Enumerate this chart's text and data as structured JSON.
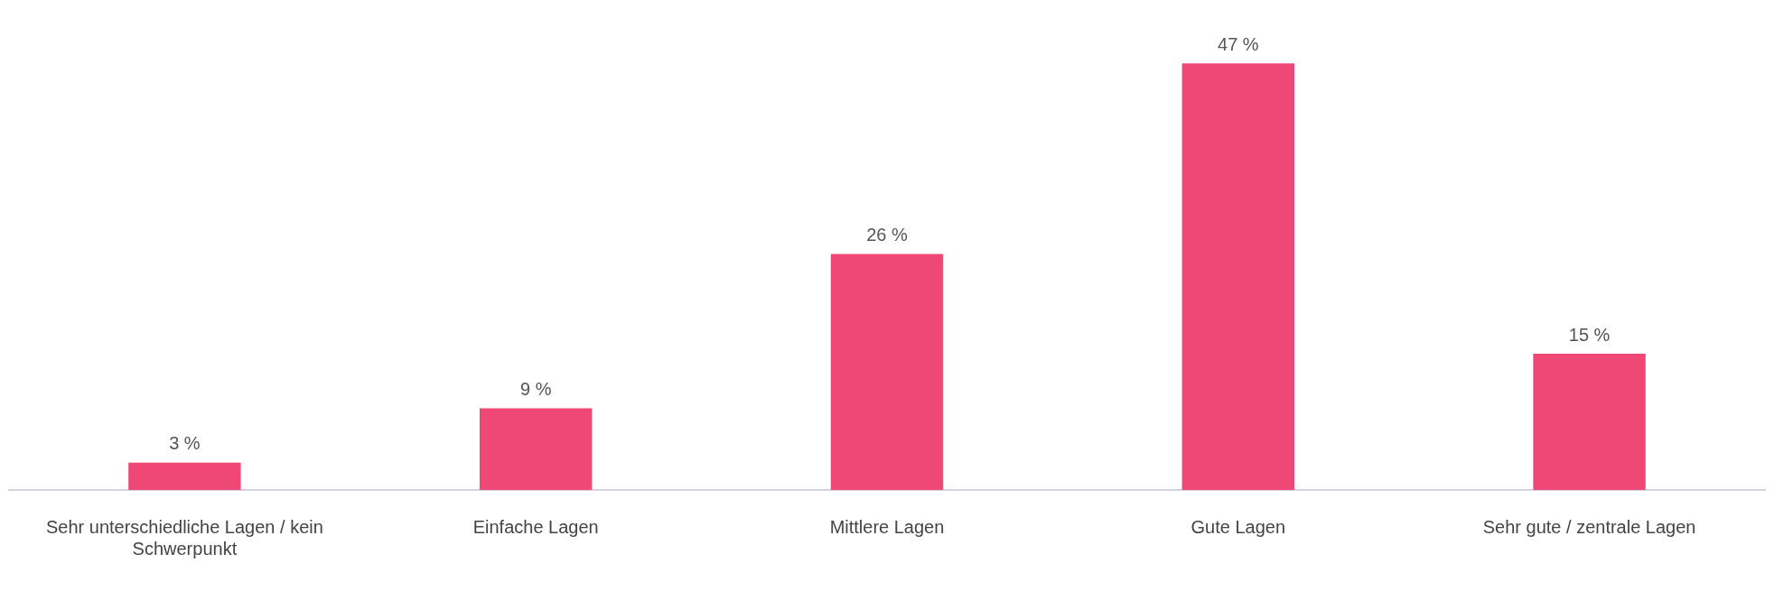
{
  "chart_data": {
    "type": "bar",
    "categories": [
      "Sehr unterschiedliche Lagen / kein Schwerpunkt",
      "Einfache Lagen",
      "Mittlere Lagen",
      "Gute Lagen",
      "Sehr gute / zentrale Lagen"
    ],
    "values": [
      3,
      9,
      26,
      47,
      15
    ],
    "value_labels": [
      "3 %",
      "9 %",
      "26 %",
      "47 %",
      "15 %"
    ],
    "color": "#f04876",
    "grid": false,
    "legend": false
  }
}
